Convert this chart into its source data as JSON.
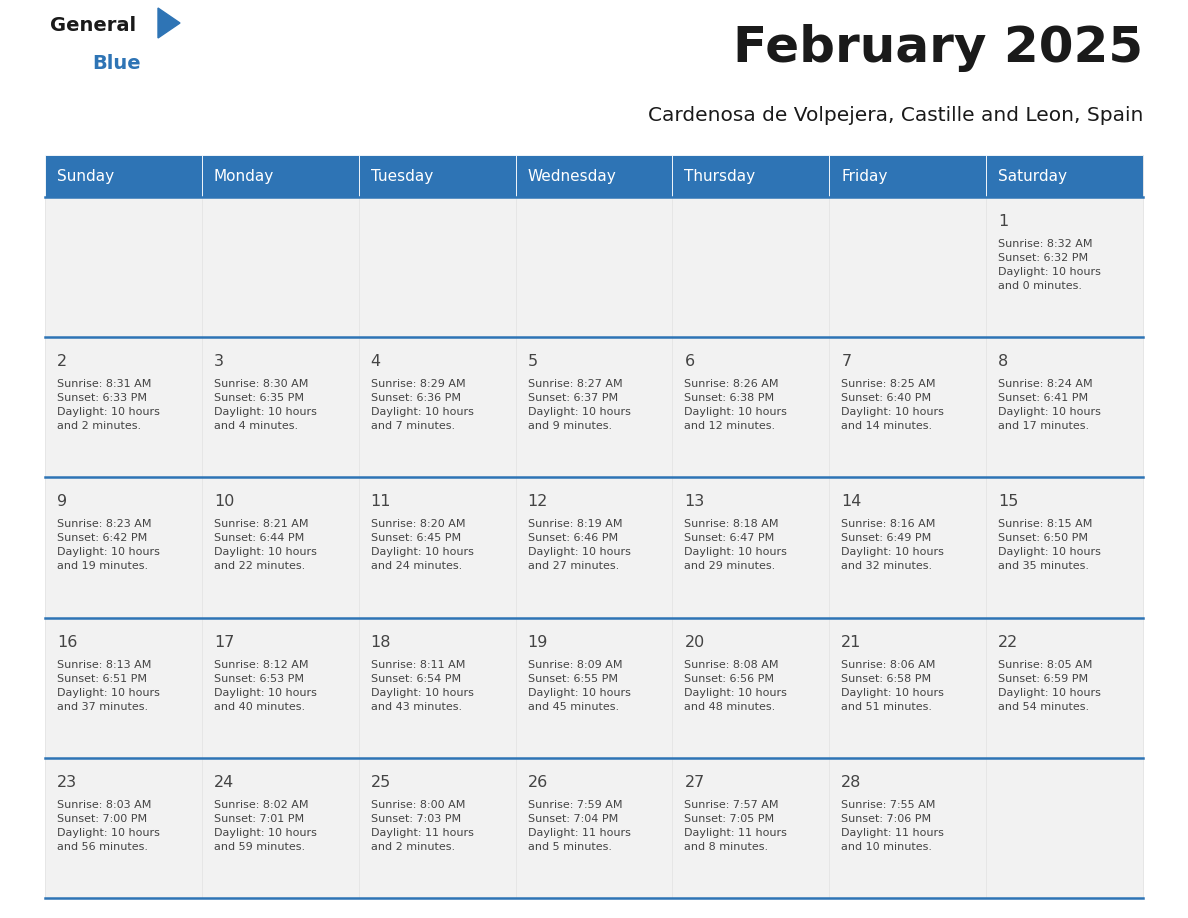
{
  "title": "February 2025",
  "subtitle": "Cardenosa de Volpejera, Castille and Leon, Spain",
  "header_bg": "#2E74B5",
  "header_text": "#FFFFFF",
  "cell_bg": "#F2F2F2",
  "text_color": "#444444",
  "border_color": "#2E74B5",
  "days_of_week": [
    "Sunday",
    "Monday",
    "Tuesday",
    "Wednesday",
    "Thursday",
    "Friday",
    "Saturday"
  ],
  "weeks": [
    [
      {
        "day": null,
        "info": null
      },
      {
        "day": null,
        "info": null
      },
      {
        "day": null,
        "info": null
      },
      {
        "day": null,
        "info": null
      },
      {
        "day": null,
        "info": null
      },
      {
        "day": null,
        "info": null
      },
      {
        "day": 1,
        "info": "Sunrise: 8:32 AM\nSunset: 6:32 PM\nDaylight: 10 hours\nand 0 minutes."
      }
    ],
    [
      {
        "day": 2,
        "info": "Sunrise: 8:31 AM\nSunset: 6:33 PM\nDaylight: 10 hours\nand 2 minutes."
      },
      {
        "day": 3,
        "info": "Sunrise: 8:30 AM\nSunset: 6:35 PM\nDaylight: 10 hours\nand 4 minutes."
      },
      {
        "day": 4,
        "info": "Sunrise: 8:29 AM\nSunset: 6:36 PM\nDaylight: 10 hours\nand 7 minutes."
      },
      {
        "day": 5,
        "info": "Sunrise: 8:27 AM\nSunset: 6:37 PM\nDaylight: 10 hours\nand 9 minutes."
      },
      {
        "day": 6,
        "info": "Sunrise: 8:26 AM\nSunset: 6:38 PM\nDaylight: 10 hours\nand 12 minutes."
      },
      {
        "day": 7,
        "info": "Sunrise: 8:25 AM\nSunset: 6:40 PM\nDaylight: 10 hours\nand 14 minutes."
      },
      {
        "day": 8,
        "info": "Sunrise: 8:24 AM\nSunset: 6:41 PM\nDaylight: 10 hours\nand 17 minutes."
      }
    ],
    [
      {
        "day": 9,
        "info": "Sunrise: 8:23 AM\nSunset: 6:42 PM\nDaylight: 10 hours\nand 19 minutes."
      },
      {
        "day": 10,
        "info": "Sunrise: 8:21 AM\nSunset: 6:44 PM\nDaylight: 10 hours\nand 22 minutes."
      },
      {
        "day": 11,
        "info": "Sunrise: 8:20 AM\nSunset: 6:45 PM\nDaylight: 10 hours\nand 24 minutes."
      },
      {
        "day": 12,
        "info": "Sunrise: 8:19 AM\nSunset: 6:46 PM\nDaylight: 10 hours\nand 27 minutes."
      },
      {
        "day": 13,
        "info": "Sunrise: 8:18 AM\nSunset: 6:47 PM\nDaylight: 10 hours\nand 29 minutes."
      },
      {
        "day": 14,
        "info": "Sunrise: 8:16 AM\nSunset: 6:49 PM\nDaylight: 10 hours\nand 32 minutes."
      },
      {
        "day": 15,
        "info": "Sunrise: 8:15 AM\nSunset: 6:50 PM\nDaylight: 10 hours\nand 35 minutes."
      }
    ],
    [
      {
        "day": 16,
        "info": "Sunrise: 8:13 AM\nSunset: 6:51 PM\nDaylight: 10 hours\nand 37 minutes."
      },
      {
        "day": 17,
        "info": "Sunrise: 8:12 AM\nSunset: 6:53 PM\nDaylight: 10 hours\nand 40 minutes."
      },
      {
        "day": 18,
        "info": "Sunrise: 8:11 AM\nSunset: 6:54 PM\nDaylight: 10 hours\nand 43 minutes."
      },
      {
        "day": 19,
        "info": "Sunrise: 8:09 AM\nSunset: 6:55 PM\nDaylight: 10 hours\nand 45 minutes."
      },
      {
        "day": 20,
        "info": "Sunrise: 8:08 AM\nSunset: 6:56 PM\nDaylight: 10 hours\nand 48 minutes."
      },
      {
        "day": 21,
        "info": "Sunrise: 8:06 AM\nSunset: 6:58 PM\nDaylight: 10 hours\nand 51 minutes."
      },
      {
        "day": 22,
        "info": "Sunrise: 8:05 AM\nSunset: 6:59 PM\nDaylight: 10 hours\nand 54 minutes."
      }
    ],
    [
      {
        "day": 23,
        "info": "Sunrise: 8:03 AM\nSunset: 7:00 PM\nDaylight: 10 hours\nand 56 minutes."
      },
      {
        "day": 24,
        "info": "Sunrise: 8:02 AM\nSunset: 7:01 PM\nDaylight: 10 hours\nand 59 minutes."
      },
      {
        "day": 25,
        "info": "Sunrise: 8:00 AM\nSunset: 7:03 PM\nDaylight: 11 hours\nand 2 minutes."
      },
      {
        "day": 26,
        "info": "Sunrise: 7:59 AM\nSunset: 7:04 PM\nDaylight: 11 hours\nand 5 minutes."
      },
      {
        "day": 27,
        "info": "Sunrise: 7:57 AM\nSunset: 7:05 PM\nDaylight: 11 hours\nand 8 minutes."
      },
      {
        "day": 28,
        "info": "Sunrise: 7:55 AM\nSunset: 7:06 PM\nDaylight: 11 hours\nand 10 minutes."
      },
      {
        "day": null,
        "info": null
      }
    ]
  ],
  "logo_text_general": "General",
  "logo_text_blue": "Blue"
}
